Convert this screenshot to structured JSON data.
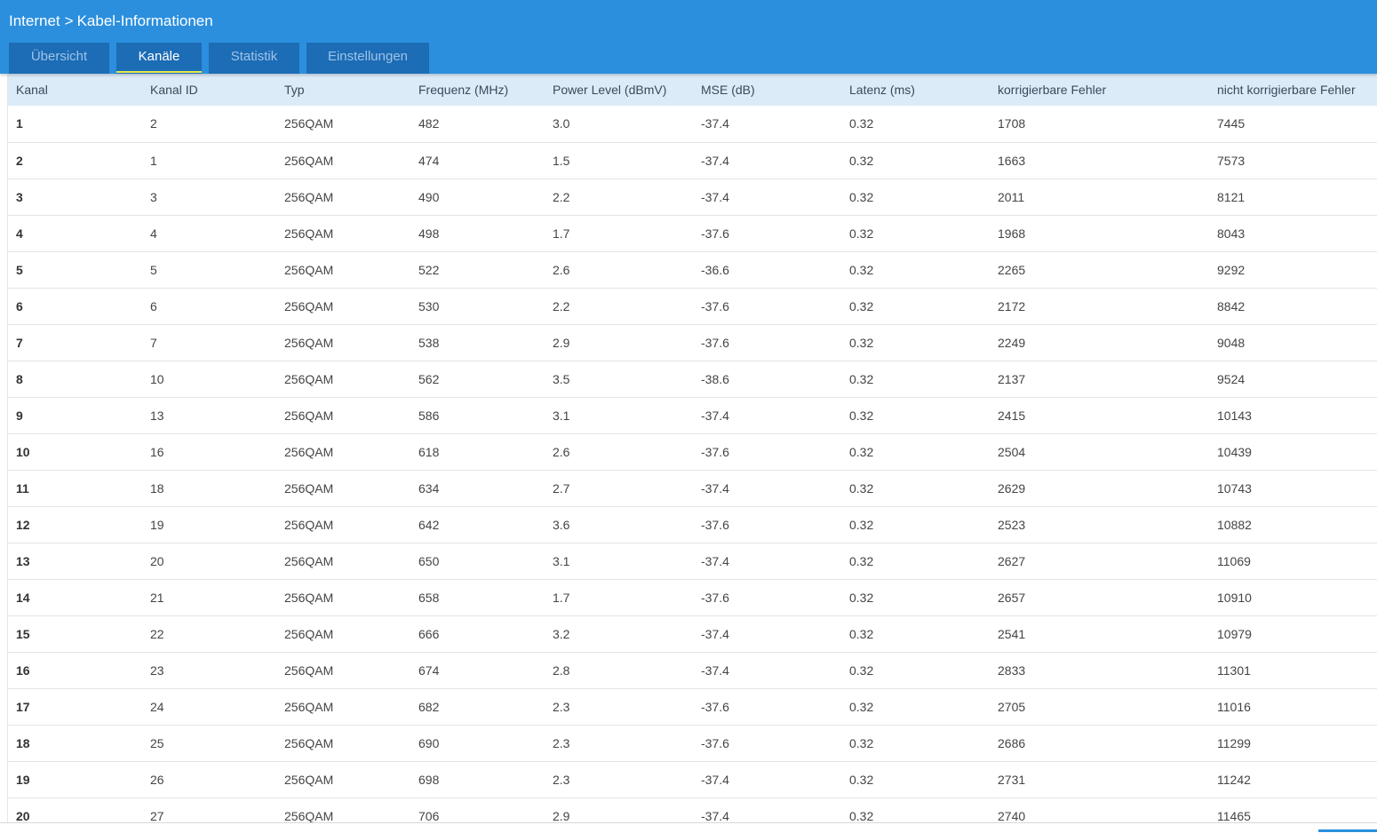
{
  "breadcrumb": {
    "section": "Internet",
    "separator": ">",
    "page": "Kabel-Informationen"
  },
  "tabs": [
    {
      "label": "Übersicht",
      "active": false
    },
    {
      "label": "Kanäle",
      "active": true
    },
    {
      "label": "Statistik",
      "active": false
    },
    {
      "label": "Einstellungen",
      "active": false
    }
  ],
  "colors": {
    "header": "#2b8fde",
    "tab": "#1c6cb6",
    "active_indicator": "#e6ea4a",
    "table_header": "#dcebf8"
  },
  "table": {
    "columns": [
      "Kanal",
      "Kanal ID",
      "Typ",
      "Frequenz (MHz)",
      "Power Level (dBmV)",
      "MSE (dB)",
      "Latenz (ms)",
      "korrigierbare Fehler",
      "nicht korrigierbare Fehler"
    ],
    "rows": [
      [
        "1",
        "2",
        "256QAM",
        "482",
        "3.0",
        "-37.4",
        "0.32",
        "1708",
        "7445"
      ],
      [
        "2",
        "1",
        "256QAM",
        "474",
        "1.5",
        "-37.4",
        "0.32",
        "1663",
        "7573"
      ],
      [
        "3",
        "3",
        "256QAM",
        "490",
        "2.2",
        "-37.4",
        "0.32",
        "2011",
        "8121"
      ],
      [
        "4",
        "4",
        "256QAM",
        "498",
        "1.7",
        "-37.6",
        "0.32",
        "1968",
        "8043"
      ],
      [
        "5",
        "5",
        "256QAM",
        "522",
        "2.6",
        "-36.6",
        "0.32",
        "2265",
        "9292"
      ],
      [
        "6",
        "6",
        "256QAM",
        "530",
        "2.2",
        "-37.6",
        "0.32",
        "2172",
        "8842"
      ],
      [
        "7",
        "7",
        "256QAM",
        "538",
        "2.9",
        "-37.6",
        "0.32",
        "2249",
        "9048"
      ],
      [
        "8",
        "10",
        "256QAM",
        "562",
        "3.5",
        "-38.6",
        "0.32",
        "2137",
        "9524"
      ],
      [
        "9",
        "13",
        "256QAM",
        "586",
        "3.1",
        "-37.4",
        "0.32",
        "2415",
        "10143"
      ],
      [
        "10",
        "16",
        "256QAM",
        "618",
        "2.6",
        "-37.6",
        "0.32",
        "2504",
        "10439"
      ],
      [
        "11",
        "18",
        "256QAM",
        "634",
        "2.7",
        "-37.4",
        "0.32",
        "2629",
        "10743"
      ],
      [
        "12",
        "19",
        "256QAM",
        "642",
        "3.6",
        "-37.6",
        "0.32",
        "2523",
        "10882"
      ],
      [
        "13",
        "20",
        "256QAM",
        "650",
        "3.1",
        "-37.4",
        "0.32",
        "2627",
        "11069"
      ],
      [
        "14",
        "21",
        "256QAM",
        "658",
        "1.7",
        "-37.6",
        "0.32",
        "2657",
        "10910"
      ],
      [
        "15",
        "22",
        "256QAM",
        "666",
        "3.2",
        "-37.4",
        "0.32",
        "2541",
        "10979"
      ],
      [
        "16",
        "23",
        "256QAM",
        "674",
        "2.8",
        "-37.4",
        "0.32",
        "2833",
        "11301"
      ],
      [
        "17",
        "24",
        "256QAM",
        "682",
        "2.3",
        "-37.6",
        "0.32",
        "2705",
        "11016"
      ],
      [
        "18",
        "25",
        "256QAM",
        "690",
        "2.3",
        "-37.6",
        "0.32",
        "2686",
        "11299"
      ],
      [
        "19",
        "26",
        "256QAM",
        "698",
        "2.3",
        "-37.4",
        "0.32",
        "2731",
        "11242"
      ],
      [
        "20",
        "27",
        "256QAM",
        "706",
        "2.9",
        "-37.4",
        "0.32",
        "2740",
        "11465"
      ]
    ]
  }
}
